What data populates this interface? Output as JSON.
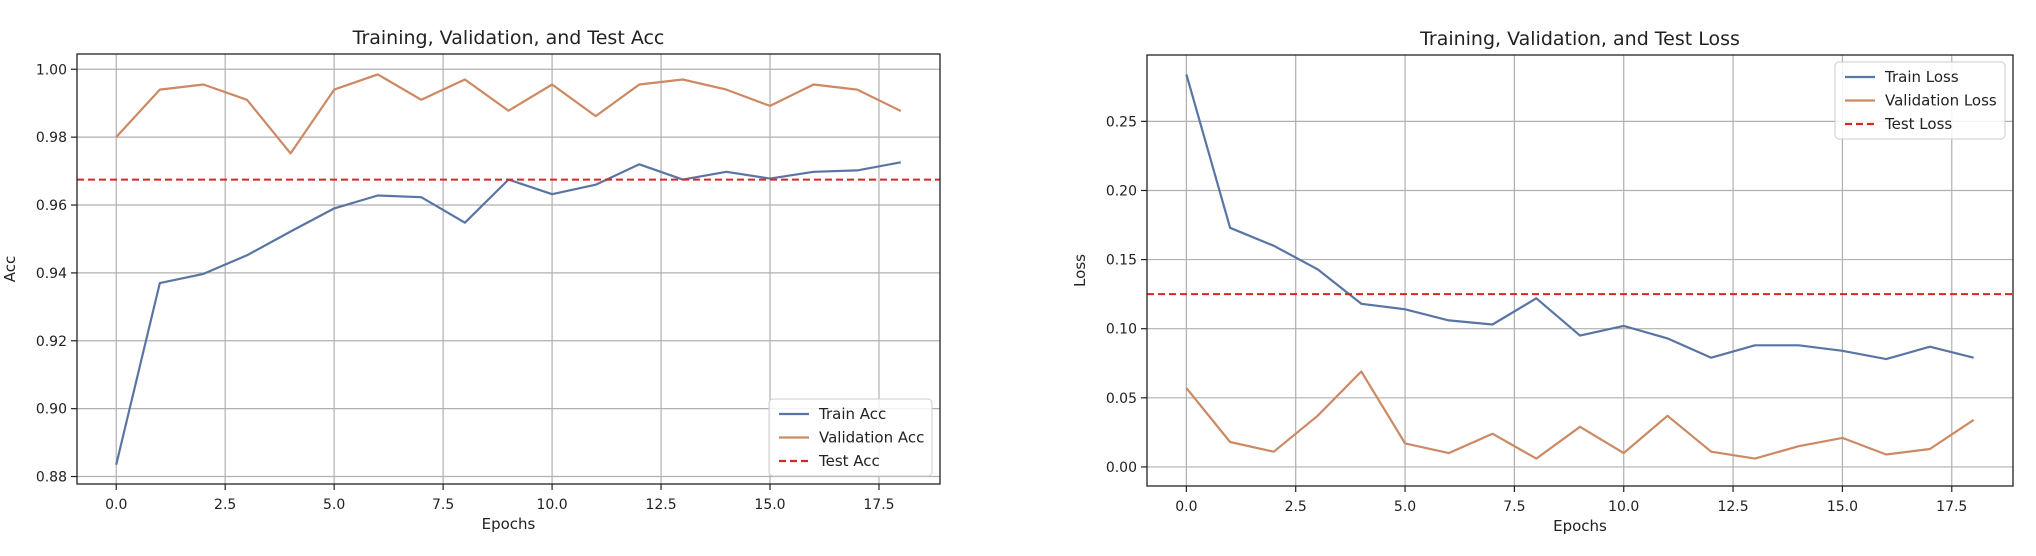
{
  "chart_data": [
    {
      "type": "line",
      "title": "Training, Validation, and Test Acc",
      "xlabel": "Epochs",
      "ylabel": "Acc",
      "xlim": [
        -0.9,
        18.9
      ],
      "ylim": [
        0.8778,
        1.0045
      ],
      "xticks": [
        0.0,
        2.5,
        5.0,
        7.5,
        10.0,
        12.5,
        15.0,
        17.5
      ],
      "xtick_labels": [
        "0.0",
        "2.5",
        "5.0",
        "7.5",
        "10.0",
        "12.5",
        "15.0",
        "17.5"
      ],
      "yticks": [
        0.88,
        0.9,
        0.92,
        0.94,
        0.96,
        0.98,
        1.0
      ],
      "ytick_labels": [
        "0.88",
        "0.90",
        "0.92",
        "0.94",
        "0.96",
        "0.98",
        "1.00"
      ],
      "grid": true,
      "legend_position": "lower-right",
      "x": [
        0,
        1,
        2,
        3,
        4,
        5,
        6,
        7,
        8,
        9,
        10,
        11,
        12,
        13,
        14,
        15,
        16,
        17,
        18
      ],
      "series": [
        {
          "name": "Train Acc",
          "color": "#5975a4",
          "style": "solid",
          "values": [
            0.8835,
            0.937,
            0.9397,
            0.9452,
            0.9522,
            0.959,
            0.9628,
            0.9623,
            0.9548,
            0.9675,
            0.9632,
            0.966,
            0.972,
            0.9675,
            0.9698,
            0.9678,
            0.9698,
            0.9702,
            0.9726
          ]
        },
        {
          "name": "Validation Acc",
          "color": "#cc8963",
          "style": "solid",
          "values": [
            0.98,
            0.994,
            0.9955,
            0.991,
            0.9752,
            0.994,
            0.9985,
            0.991,
            0.997,
            0.9878,
            0.9955,
            0.9862,
            0.9955,
            0.997,
            0.994,
            0.9892,
            0.9955,
            0.994,
            0.9877
          ]
        },
        {
          "name": "Test Acc",
          "color": "#d62728",
          "style": "dashed",
          "constant": 0.9675
        }
      ]
    },
    {
      "type": "line",
      "title": "Training, Validation, and Test Loss",
      "xlabel": "Epochs",
      "ylabel": "Loss",
      "xlim": [
        -0.9,
        18.9
      ],
      "ylim": [
        -0.0138,
        0.298
      ],
      "xticks": [
        0.0,
        2.5,
        5.0,
        7.5,
        10.0,
        12.5,
        15.0,
        17.5
      ],
      "xtick_labels": [
        "0.0",
        "2.5",
        "5.0",
        "7.5",
        "10.0",
        "12.5",
        "15.0",
        "17.5"
      ],
      "yticks": [
        0.0,
        0.05,
        0.1,
        0.15,
        0.2,
        0.25
      ],
      "ytick_labels": [
        "0.00",
        "0.05",
        "0.10",
        "0.15",
        "0.20",
        "0.25"
      ],
      "grid": true,
      "legend_position": "upper-right",
      "x": [
        0,
        1,
        2,
        3,
        4,
        5,
        6,
        7,
        8,
        9,
        10,
        11,
        12,
        13,
        14,
        15,
        16,
        17,
        18
      ],
      "series": [
        {
          "name": "Train Loss",
          "color": "#5975a4",
          "style": "solid",
          "values": [
            0.284,
            0.173,
            0.16,
            0.143,
            0.118,
            0.114,
            0.106,
            0.103,
            0.122,
            0.095,
            0.102,
            0.093,
            0.079,
            0.088,
            0.088,
            0.084,
            0.078,
            0.087,
            0.079
          ]
        },
        {
          "name": "Validation Loss",
          "color": "#cc8963",
          "style": "solid",
          "values": [
            0.057,
            0.018,
            0.011,
            0.037,
            0.069,
            0.017,
            0.01,
            0.024,
            0.006,
            0.029,
            0.01,
            0.037,
            0.011,
            0.006,
            0.015,
            0.021,
            0.009,
            0.013,
            0.034
          ]
        },
        {
          "name": "Test Loss",
          "color": "#d62728",
          "style": "dashed",
          "constant": 0.125
        }
      ]
    }
  ]
}
